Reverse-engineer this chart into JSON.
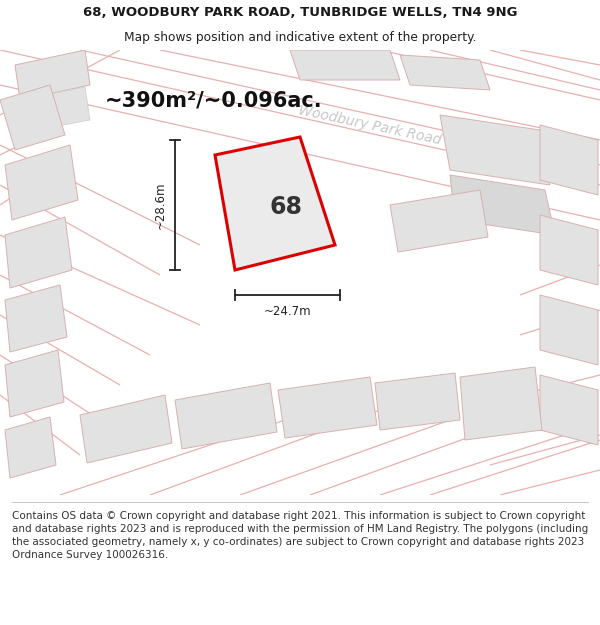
{
  "title_line1": "68, WOODBURY PARK ROAD, TUNBRIDGE WELLS, TN4 9NG",
  "title_line2": "Map shows position and indicative extent of the property.",
  "area_text": "~390m²/~0.096ac.",
  "number_label": "68",
  "dim_width": "~24.7m",
  "dim_height": "~28.6m",
  "road_label": "Woodbury Park Road",
  "footer_text": "Contains OS data © Crown copyright and database right 2021. This information is subject to Crown copyright and database rights 2023 and is reproduced with the permission of HM Land Registry. The polygons (including the associated geometry, namely x, y co-ordinates) are subject to Crown copyright and database rights 2023 Ordnance Survey 100026316.",
  "map_bg_color": "#f7f5f5",
  "plot_fill_color": "#ebebeb",
  "plot_edge_color": "#dd0000",
  "neighbor_fill_color": "#e2e2e2",
  "neighbor_edge_color": "#d8b0b0",
  "road_line_color": "#e8b0b0",
  "dim_line_color": "#222222",
  "title_fontsize": 9.5,
  "subtitle_fontsize": 8.8,
  "area_fontsize": 15,
  "number_fontsize": 17,
  "road_label_fontsize": 10,
  "footer_fontsize": 7.5,
  "road_label_color": "#c8c8c8"
}
